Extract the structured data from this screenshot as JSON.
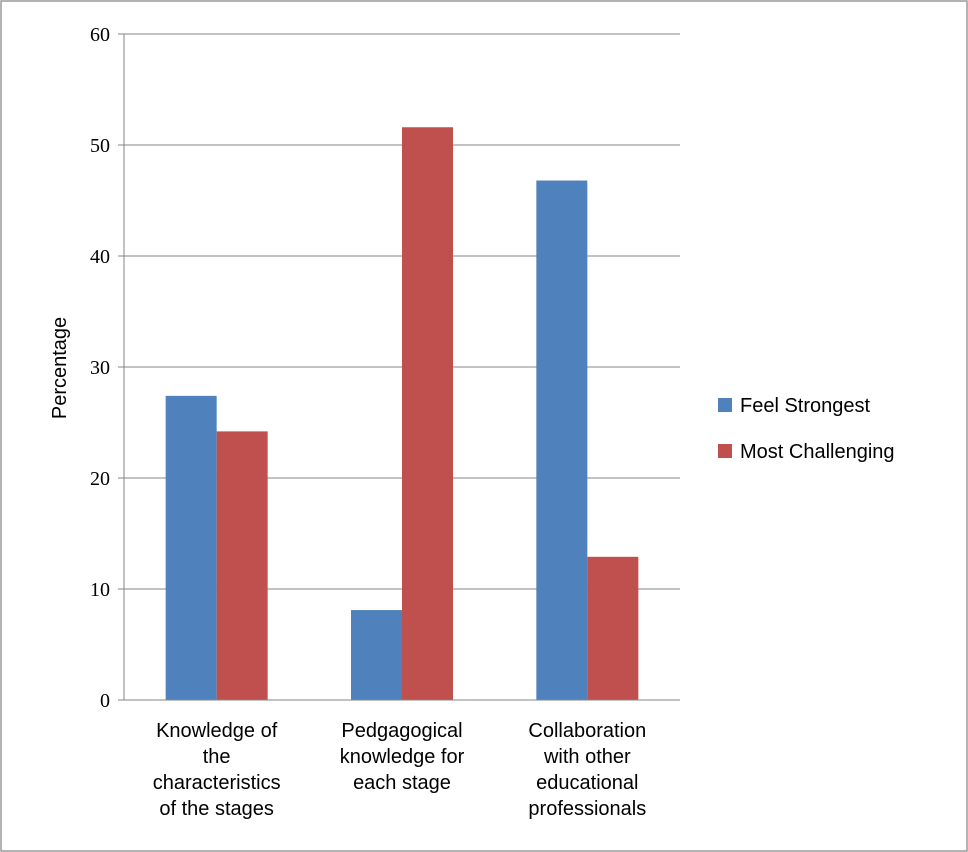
{
  "chart_data": {
    "type": "bar",
    "categories": [
      [
        "Knowledge of",
        "the",
        "characteristics",
        "of the stages"
      ],
      [
        "Pedgagogical",
        "knowledge for",
        "each stage"
      ],
      [
        "Collaboration",
        "with other",
        "educational",
        "professionals"
      ]
    ],
    "series": [
      {
        "name": "Feel Strongest",
        "values": [
          27.4,
          8.1,
          46.8
        ],
        "color": "#4F81BD"
      },
      {
        "name": "Most Challenging",
        "values": [
          24.2,
          51.6,
          12.9
        ],
        "color": "#C0504D"
      }
    ],
    "title": "",
    "xlabel": "",
    "ylabel": "Percentage",
    "ylim": [
      0,
      60
    ],
    "yticks": [
      0,
      10,
      20,
      30,
      40,
      50,
      60
    ],
    "grid": true,
    "legend_position": "right"
  }
}
